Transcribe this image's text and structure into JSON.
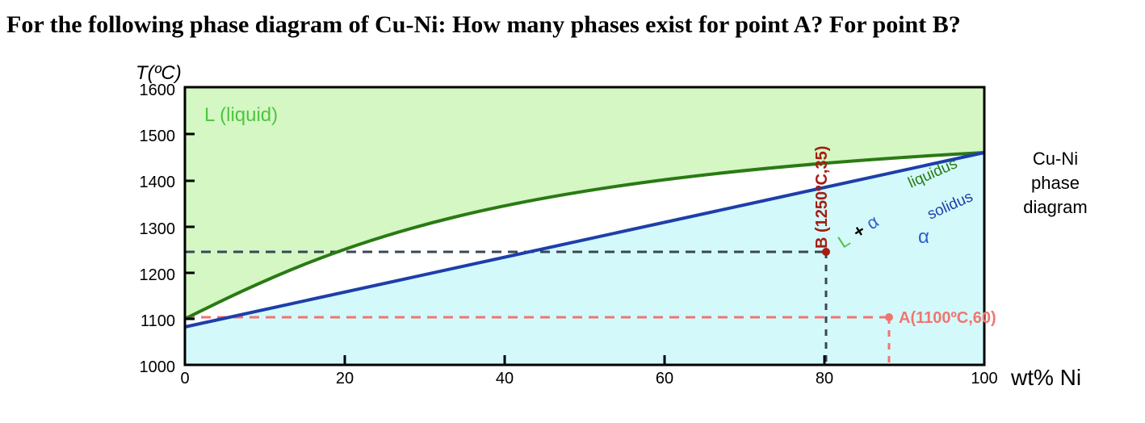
{
  "question": "For the following phase diagram of Cu-Ni: How many phases exist for point A? For point B?",
  "diagram": {
    "y_axis_title": "T(ºC)",
    "x_axis_title": "wt% Ni",
    "y_ticks": [
      "1600",
      "1500",
      "1400",
      "1300",
      "1200",
      "1100",
      "1000"
    ],
    "x_ticks": [
      "0",
      "20",
      "40",
      "60",
      "80",
      "100"
    ],
    "liquid_label": "L (liquid)",
    "two_phase_label_L": "L",
    "two_phase_label_plus": "+",
    "two_phase_label_alpha": "α",
    "alpha_label": "α",
    "liquidus_label": "liquidus",
    "solidus_label": "solidus",
    "caption": [
      "Cu-Ni",
      "phase",
      "diagram"
    ],
    "point_A": {
      "label": "A(1100ºC,60)",
      "T": 1100,
      "wt_ni": 60
    },
    "point_B": {
      "label": "B (1250ºC,35)",
      "T": 1250,
      "wt_ni": 35
    },
    "colors": {
      "liquid_region": "#d4f7c4",
      "alpha_region": "#d4f9fb",
      "liquidus": "#2a7a14",
      "solidus": "#1d3faa",
      "point_A": "#ef7670",
      "point_B": "#a31d12",
      "liquid_text": "#4ec540",
      "alpha_text": "#2b5fd0"
    }
  }
}
